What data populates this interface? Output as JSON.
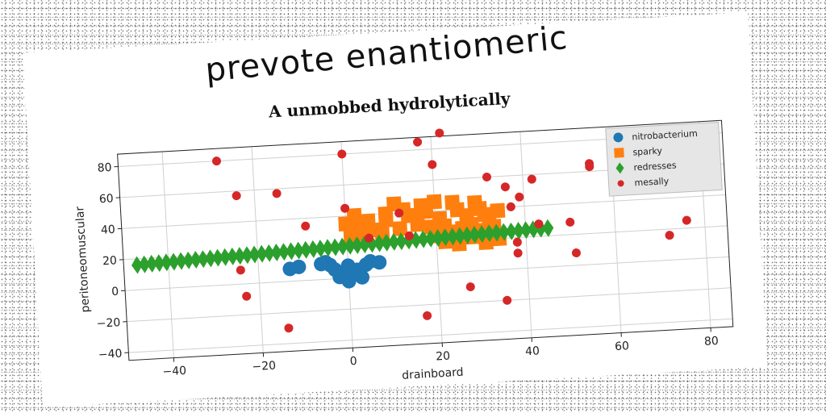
{
  "titles": {
    "main": "prevote enantiomeric",
    "sub": "A unmobbed hydrolytically"
  },
  "chart_data": {
    "type": "scatter",
    "xlabel": "drainboard",
    "ylabel": "peritoneomuscular",
    "xlim": [
      -50,
      85
    ],
    "ylim": [
      -45,
      88
    ],
    "xticks": [
      -40,
      -20,
      0,
      20,
      40,
      60,
      80
    ],
    "yticks": [
      -40,
      -20,
      0,
      20,
      40,
      60,
      80
    ],
    "grid": true,
    "legend_position": "top-right",
    "series": [
      {
        "name": "nitrobacterium",
        "marker": "circle",
        "color": "#1f77b4",
        "points": [
          [
            -13,
            8
          ],
          [
            -11,
            9
          ],
          [
            -6,
            10
          ],
          [
            -4,
            9
          ],
          [
            -3,
            6
          ],
          [
            -1,
            4
          ],
          [
            -2,
            1
          ],
          [
            0,
            -2
          ],
          [
            1,
            2
          ],
          [
            2,
            5
          ],
          [
            3,
            0
          ],
          [
            4,
            8
          ],
          [
            5,
            10
          ],
          [
            7,
            9
          ],
          [
            -5,
            11
          ],
          [
            0,
            8
          ]
        ]
      },
      {
        "name": "sparky",
        "marker": "square",
        "color": "#ff7f0e",
        "points": [
          [
            0,
            35
          ],
          [
            2,
            40
          ],
          [
            3,
            33
          ],
          [
            5,
            36
          ],
          [
            6,
            30
          ],
          [
            8,
            28
          ],
          [
            9,
            36
          ],
          [
            11,
            46
          ],
          [
            13,
            42
          ],
          [
            15,
            38
          ],
          [
            17,
            44
          ],
          [
            18,
            40
          ],
          [
            20,
            46
          ],
          [
            21,
            35
          ],
          [
            22,
            30
          ],
          [
            24,
            45
          ],
          [
            25,
            40
          ],
          [
            27,
            36
          ],
          [
            28,
            30
          ],
          [
            29,
            44
          ],
          [
            30,
            40
          ],
          [
            31,
            36
          ],
          [
            32,
            32
          ],
          [
            33,
            28
          ],
          [
            34,
            38
          ],
          [
            22,
            20
          ],
          [
            25,
            18
          ],
          [
            28,
            22
          ],
          [
            31,
            18
          ],
          [
            34,
            20
          ],
          [
            27,
            25
          ],
          [
            30,
            26
          ],
          [
            20,
            24
          ],
          [
            23,
            26
          ],
          [
            26,
            28
          ],
          [
            19,
            30
          ],
          [
            16,
            32
          ],
          [
            12,
            30
          ],
          [
            4,
            28
          ],
          [
            1,
            26
          ],
          [
            9,
            40
          ],
          [
            14,
            38
          ],
          [
            31,
            24
          ]
        ]
      },
      {
        "name": "redresses",
        "marker": "diamond",
        "color": "#2ca02c",
        "x_start": -47,
        "x_end": 45,
        "count": 57,
        "y_start": 16,
        "y_end": 25
      },
      {
        "name": "mesally",
        "marker": "circle-small",
        "color": "#d62728",
        "points": [
          [
            -28,
            80
          ],
          [
            -24,
            57
          ],
          [
            -24,
            9
          ],
          [
            -23,
            -8
          ],
          [
            -15,
            57
          ],
          [
            -14,
            -30
          ],
          [
            -9,
            35
          ],
          [
            0,
            80
          ],
          [
            0,
            45
          ],
          [
            5,
            25
          ],
          [
            12,
            40
          ],
          [
            14,
            25
          ],
          [
            17,
            85
          ],
          [
            17,
            -27
          ],
          [
            20,
            70
          ],
          [
            22,
            90
          ],
          [
            27,
            -10
          ],
          [
            32,
            60
          ],
          [
            35,
            -20
          ],
          [
            36,
            53
          ],
          [
            37,
            40
          ],
          [
            38,
            17
          ],
          [
            38,
            10
          ],
          [
            39,
            46
          ],
          [
            42,
            57
          ],
          [
            43,
            28
          ],
          [
            50,
            28
          ],
          [
            51,
            8
          ],
          [
            55,
            65
          ],
          [
            55,
            63
          ],
          [
            66,
            61
          ],
          [
            70,
            65
          ],
          [
            72,
            16
          ],
          [
            76,
            25
          ]
        ]
      }
    ]
  }
}
